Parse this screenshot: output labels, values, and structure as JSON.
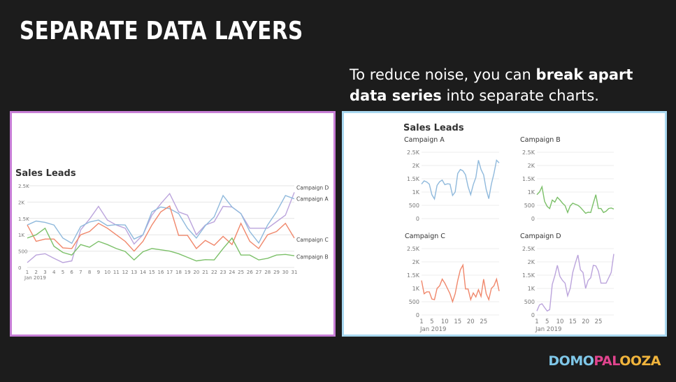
{
  "slide": {
    "title": "SEPARATE DATA LAYERS",
    "subtitle_part1": "To reduce noise, you can ",
    "subtitle_bold": "break apart data series",
    "subtitle_part2": " into separate charts.",
    "logo_part1": "DOMO",
    "logo_part2": "PAL",
    "logo_part3": "OOZA"
  },
  "colors": {
    "Campaign A": "#8fb9dc",
    "Campaign B": "#7cc069",
    "Campaign C": "#f0876b",
    "Campaign D": "#bba4dc"
  },
  "chart_data": [
    {
      "type": "line",
      "title": "Sales Leads",
      "x": [
        1,
        2,
        3,
        4,
        5,
        6,
        7,
        8,
        9,
        10,
        11,
        12,
        13,
        14,
        15,
        16,
        17,
        18,
        19,
        20,
        21,
        22,
        23,
        24,
        25,
        26,
        27,
        28,
        29,
        30,
        31
      ],
      "xlabel_sub": "Jan 2019",
      "ylim": [
        0,
        2500
      ],
      "yticks": [
        "0",
        "500",
        "1K",
        "1.5K",
        "2K",
        "2.5K"
      ],
      "grid": true,
      "series": [
        {
          "name": "Campaign D",
          "values": [
            150,
            380,
            420,
            280,
            150,
            200,
            1150,
            1480,
            1870,
            1450,
            1300,
            1200,
            720,
            1000,
            1600,
            1950,
            2260,
            1700,
            1600,
            1000,
            1300,
            1400,
            1870,
            1850,
            1650,
            1200,
            1200,
            1200,
            1400,
            1600,
            2300
          ]
        },
        {
          "name": "Campaign A",
          "values": [
            1300,
            1420,
            1380,
            1300,
            900,
            740,
            1250,
            1390,
            1450,
            1280,
            1310,
            1300,
            870,
            1000,
            1700,
            1850,
            1800,
            1650,
            1200,
            900,
            1280,
            1550,
            2200,
            1850,
            1650,
            1100,
            750,
            1300,
            1700,
            2200,
            2100
          ]
        },
        {
          "name": "Campaign C",
          "values": [
            1300,
            800,
            870,
            870,
            600,
            580,
            1000,
            1100,
            1350,
            1200,
            1000,
            800,
            500,
            800,
            1300,
            1700,
            1880,
            980,
            980,
            580,
            830,
            680,
            950,
            700,
            1350,
            800,
            580,
            1000,
            1100,
            1350,
            900
          ]
        },
        {
          "name": "Campaign B",
          "values": [
            900,
            1000,
            1200,
            650,
            460,
            380,
            700,
            620,
            800,
            700,
            580,
            490,
            230,
            480,
            580,
            540,
            500,
            420,
            310,
            200,
            240,
            230,
            580,
            900,
            380,
            380,
            230,
            280,
            380,
            400,
            360
          ]
        }
      ]
    },
    {
      "type": "line",
      "title": "Sales Leads",
      "subcharts": [
        {
          "name": "Campaign A",
          "ylim": [
            0,
            2500
          ],
          "yticks": [
            "0",
            "500",
            "1K",
            "1.5K",
            "2K",
            "2.5K"
          ],
          "values": [
            1300,
            1420,
            1380,
            1300,
            900,
            740,
            1250,
            1390,
            1450,
            1280,
            1310,
            1300,
            870,
            1000,
            1700,
            1850,
            1800,
            1650,
            1200,
            900,
            1280,
            1550,
            2200,
            1850,
            1650,
            1100,
            750,
            1300,
            1700,
            2200,
            2100
          ]
        },
        {
          "name": "Campaign B",
          "ylim": [
            0,
            2500
          ],
          "yticks": [
            "0",
            "500",
            "1K",
            "1.5K",
            "2K",
            "2.5K"
          ],
          "values": [
            900,
            1000,
            1200,
            650,
            460,
            380,
            700,
            620,
            800,
            700,
            580,
            490,
            230,
            480,
            580,
            540,
            500,
            420,
            310,
            200,
            240,
            230,
            580,
            900,
            380,
            380,
            230,
            280,
            380,
            400,
            360
          ]
        },
        {
          "name": "Campaign C",
          "ylim": [
            0,
            2500
          ],
          "yticks": [
            "0",
            "500",
            "1K",
            "1.5K",
            "2K",
            "2.5K"
          ],
          "values": [
            1300,
            800,
            870,
            870,
            600,
            580,
            1000,
            1100,
            1350,
            1200,
            1000,
            800,
            500,
            800,
            1300,
            1700,
            1880,
            980,
            980,
            580,
            830,
            680,
            950,
            700,
            1350,
            800,
            580,
            1000,
            1100,
            1350,
            900
          ]
        },
        {
          "name": "Campaign D",
          "ylim": [
            0,
            2500
          ],
          "yticks": [
            "0",
            "500",
            "1K",
            "1.5K",
            "2K",
            "2.5K"
          ],
          "values": [
            150,
            380,
            420,
            280,
            150,
            200,
            1150,
            1480,
            1870,
            1450,
            1300,
            1200,
            720,
            1000,
            1600,
            1950,
            2260,
            1700,
            1600,
            1000,
            1300,
            1400,
            1870,
            1850,
            1650,
            1200,
            1200,
            1200,
            1400,
            1600,
            2300
          ]
        }
      ],
      "xticks": [
        "1",
        "5",
        "10",
        "15",
        "20",
        "25"
      ],
      "xlabel_sub": "Jan 2019"
    }
  ]
}
